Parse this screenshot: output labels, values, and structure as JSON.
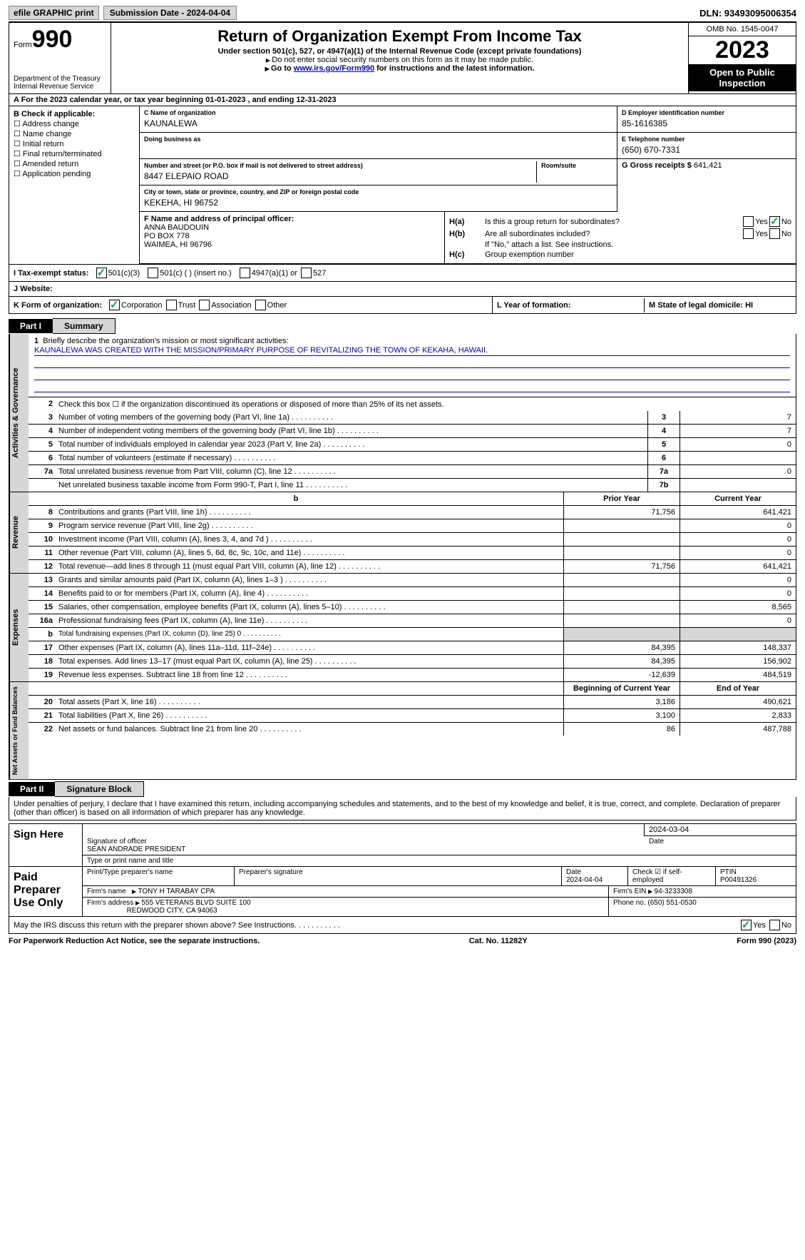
{
  "topbar": {
    "efile": "efile GRAPHIC print",
    "submission": "Submission Date - 2024-04-04",
    "dln": "DLN: 93493095006354"
  },
  "header": {
    "form_word": "Form",
    "form_no": "990",
    "dept": "Department of the Treasury\nInternal Revenue Service",
    "title": "Return of Organization Exempt From Income Tax",
    "sub1": "Under section 501(c), 527, or 4947(a)(1) of the Internal Revenue Code (except private foundations)",
    "sub2": "Do not enter social security numbers on this form as it may be made public.",
    "goto_pre": "Go to ",
    "goto_link": "www.irs.gov/Form990",
    "goto_post": " for instructions and the latest information.",
    "omb": "OMB No. 1545-0047",
    "year": "2023",
    "open": "Open to Public Inspection"
  },
  "rowA": "A  For the 2023 calendar year, or tax year beginning 01-01-2023   , and ending 12-31-2023",
  "boxB": {
    "title": "B Check if applicable:",
    "opts": [
      "Address change",
      "Name change",
      "Initial return",
      "Final return/terminated",
      "Amended return",
      "Application pending"
    ]
  },
  "boxC": {
    "name_lbl": "C Name of organization",
    "name": "KAUNALEWA",
    "dba_lbl": "Doing business as",
    "addr_lbl": "Number and street (or P.O. box if mail is not delivered to street address)",
    "room_lbl": "Room/suite",
    "addr": "8447 ELEPAIO ROAD",
    "city_lbl": "City or town, state or province, country, and ZIP or foreign postal code",
    "city": "KEKEHA, HI  96752"
  },
  "boxD": {
    "lbl": "D Employer identification number",
    "val": "85-1616385"
  },
  "boxE": {
    "lbl": "E Telephone number",
    "val": "(650) 670-7331"
  },
  "boxG": {
    "lbl": "G Gross receipts $",
    "val": "641,421"
  },
  "boxF": {
    "lbl": "F  Name and address of principal officer:",
    "l1": "ANNA BAUDOUIN",
    "l2": "PO BOX 778",
    "l3": "WAIMEA, HI  96796"
  },
  "boxH": {
    "a": "Is this a group return for subordinates?",
    "b": "Are all subordinates included?",
    "b2": "If \"No,\" attach a list. See instructions.",
    "c": "Group exemption number",
    "yes": "Yes",
    "no": "No"
  },
  "rowI": {
    "lbl": "I  Tax-exempt status:",
    "o1": "501(c)(3)",
    "o2": "501(c) (  ) (insert no.)",
    "o3": "4947(a)(1) or",
    "o4": "527"
  },
  "rowJ": {
    "lbl": "J  Website:"
  },
  "rowK": {
    "lbl": "K Form of organization:",
    "o1": "Corporation",
    "o2": "Trust",
    "o3": "Association",
    "o4": "Other"
  },
  "rowL": {
    "lbl": "L Year of formation:"
  },
  "rowM": {
    "lbl": "M State of legal domicile: HI"
  },
  "part1": {
    "tag": "Part I",
    "title": "Summary"
  },
  "s1": {
    "l1": "Briefly describe the organization's mission or most significant activities:",
    "mission": "KAUNALEWA WAS CREATED WITH THE MISSION/PRIMARY PURPOSE OF REVITALIZING THE TOWN OF KEKAHA, HAWAII.",
    "l2": "Check this box ☐ if the organization discontinued its operations or disposed of more than 25% of its net assets.",
    "rows": [
      {
        "n": "3",
        "t": "Number of voting members of the governing body (Part VI, line 1a)",
        "b": "3",
        "v": "7"
      },
      {
        "n": "4",
        "t": "Number of independent voting members of the governing body (Part VI, line 1b)",
        "b": "4",
        "v": "7"
      },
      {
        "n": "5",
        "t": "Total number of individuals employed in calendar year 2023 (Part V, line 2a)",
        "b": "5",
        "v": "0"
      },
      {
        "n": "6",
        "t": "Total number of volunteers (estimate if necessary)",
        "b": "6",
        "v": ""
      },
      {
        "n": "7a",
        "t": "Total unrelated business revenue from Part VIII, column (C), line 12",
        "b": "7a",
        "v": "0"
      },
      {
        "n": "",
        "t": "Net unrelated business taxable income from Form 990-T, Part I, line 11",
        "b": "7b",
        "v": ""
      }
    ]
  },
  "vtabs": {
    "ag": "Activities & Governance",
    "rv": "Revenue",
    "ex": "Expenses",
    "na": "Net Assets or\nFund Balances"
  },
  "cols": {
    "py": "Prior Year",
    "cy": "Current Year",
    "bcy": "Beginning of Current Year",
    "eoy": "End of Year",
    "b": "b"
  },
  "rev": [
    {
      "n": "8",
      "t": "Contributions and grants (Part VIII, line 1h)",
      "p": "71,756",
      "c": "641,421"
    },
    {
      "n": "9",
      "t": "Program service revenue (Part VIII, line 2g)",
      "p": "",
      "c": "0"
    },
    {
      "n": "10",
      "t": "Investment income (Part VIII, column (A), lines 3, 4, and 7d )",
      "p": "",
      "c": "0"
    },
    {
      "n": "11",
      "t": "Other revenue (Part VIII, column (A), lines 5, 6d, 8c, 9c, 10c, and 11e)",
      "p": "",
      "c": "0"
    },
    {
      "n": "12",
      "t": "Total revenue—add lines 8 through 11 (must equal Part VIII, column (A), line 12)",
      "p": "71,756",
      "c": "641,421"
    }
  ],
  "exp": [
    {
      "n": "13",
      "t": "Grants and similar amounts paid (Part IX, column (A), lines 1–3 )",
      "p": "",
      "c": "0"
    },
    {
      "n": "14",
      "t": "Benefits paid to or for members (Part IX, column (A), line 4)",
      "p": "",
      "c": "0"
    },
    {
      "n": "15",
      "t": "Salaries, other compensation, employee benefits (Part IX, column (A), lines 5–10)",
      "p": "",
      "c": "8,565"
    },
    {
      "n": "16a",
      "t": "Professional fundraising fees (Part IX, column (A), line 11e)",
      "p": "",
      "c": "0"
    },
    {
      "n": "b",
      "t": "Total fundraising expenses (Part IX, column (D), line 25) 0",
      "p": "grey",
      "c": "grey"
    },
    {
      "n": "17",
      "t": "Other expenses (Part IX, column (A), lines 11a–11d, 11f–24e)",
      "p": "84,395",
      "c": "148,337"
    },
    {
      "n": "18",
      "t": "Total expenses. Add lines 13–17 (must equal Part IX, column (A), line 25)",
      "p": "84,395",
      "c": "156,902"
    },
    {
      "n": "19",
      "t": "Revenue less expenses. Subtract line 18 from line 12",
      "p": "-12,639",
      "c": "484,519"
    }
  ],
  "na": [
    {
      "n": "20",
      "t": "Total assets (Part X, line 16)",
      "p": "3,186",
      "c": "490,621"
    },
    {
      "n": "21",
      "t": "Total liabilities (Part X, line 26)",
      "p": "3,100",
      "c": "2,833"
    },
    {
      "n": "22",
      "t": "Net assets or fund balances. Subtract line 21 from line 20",
      "p": "86",
      "c": "487,788"
    }
  ],
  "part2": {
    "tag": "Part II",
    "title": "Signature Block"
  },
  "perjury": "Under penalties of perjury, I declare that I have examined this return, including accompanying schedules and statements, and to the best of my knowledge and belief, it is true, correct, and complete. Declaration of preparer (other than officer) is based on all information of which preparer has any knowledge.",
  "sign": {
    "here": "Sign Here",
    "date": "2024-03-04",
    "sig_lbl": "Signature of officer",
    "date_lbl": "Date",
    "name": "SEAN ANDRADE PRESIDENT",
    "name_lbl": "Type or print name and title"
  },
  "paid": {
    "title": "Paid Preparer Use Only",
    "h1": "Print/Type preparer's name",
    "h2": "Preparer's signature",
    "h3": "Date",
    "h3v": "2024-04-04",
    "h4": "Check ☑ if self-employed",
    "h5": "PTIN",
    "h5v": "P00491326",
    "firm_lbl": "Firm's name",
    "firm": "TONY H TARABAY CPA",
    "ein_lbl": "Firm's EIN",
    "ein": "94-3233308",
    "addr_lbl": "Firm's address",
    "addr1": "555 VETERANS BLVD SUITE 100",
    "addr2": "REDWOOD CITY, CA  94063",
    "phone_lbl": "Phone no.",
    "phone": "(650) 551-0530"
  },
  "discuss": "May the IRS discuss this return with the preparer shown above? See Instructions.",
  "footer": {
    "l": "For Paperwork Reduction Act Notice, see the separate instructions.",
    "c": "Cat. No. 11282Y",
    "r": "Form 990 (2023)"
  }
}
